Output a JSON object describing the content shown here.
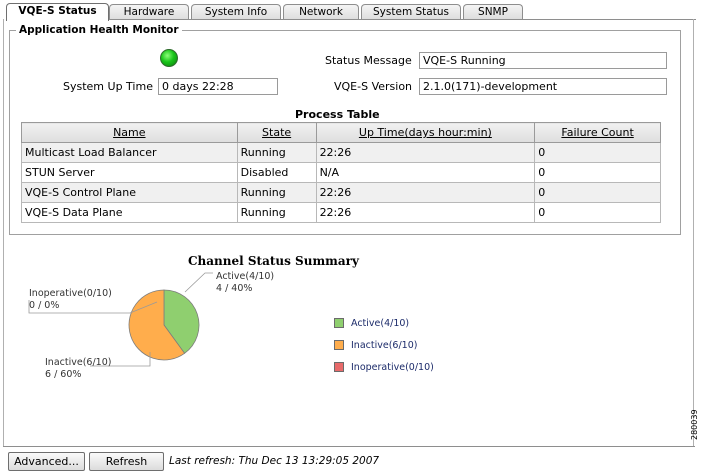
{
  "tabs": [
    {
      "label": "VQE-S Status",
      "active": true
    },
    {
      "label": "Hardware"
    },
    {
      "label": "System Info"
    },
    {
      "label": "Network"
    },
    {
      "label": "System Status"
    },
    {
      "label": "SNMP"
    }
  ],
  "monitor": {
    "legend": "Application Health Monitor",
    "status_led_color": "#19c51a",
    "up_time_label": "System Up Time",
    "up_time_value": "0 days 22:28",
    "status_message_label": "Status Message",
    "status_message_value": "VQE-S Running",
    "version_label": "VQE-S Version",
    "version_value": "2.1.0(171)-development"
  },
  "process_table": {
    "title": "Process Table",
    "headers": [
      "Name",
      "State",
      "Up Time(days hour:min)",
      "Failure Count"
    ],
    "rows": [
      [
        "Multicast Load Balancer",
        "Running",
        "22:26",
        "0"
      ],
      [
        "STUN Server",
        "Disabled",
        "N/A",
        "0"
      ],
      [
        "VQE-S Control Plane",
        "Running",
        "22:26",
        "0"
      ],
      [
        "VQE-S Data Plane",
        "Running",
        "22:26",
        "0"
      ]
    ]
  },
  "chart_data": {
    "type": "pie",
    "title": "Channel Status Summary",
    "slices": [
      {
        "label": "Active(4/10)",
        "detail": "4 / 40%",
        "value": 4,
        "color": "#8fcf6f"
      },
      {
        "label": "Inactive(6/10)",
        "detail": "6 / 60%",
        "value": 6,
        "color": "#ffad4c"
      },
      {
        "label": "Inoperative(0/10)",
        "detail": "0 / 0%",
        "value": 0,
        "color": "#e86a6a"
      }
    ],
    "legend_position": "right"
  },
  "footer": {
    "advanced_label": "Advanced...",
    "refresh_label": "Refresh",
    "last_refresh": "Last refresh: Thu Dec 13 13:29:05 2007"
  },
  "figure_number": "280039"
}
